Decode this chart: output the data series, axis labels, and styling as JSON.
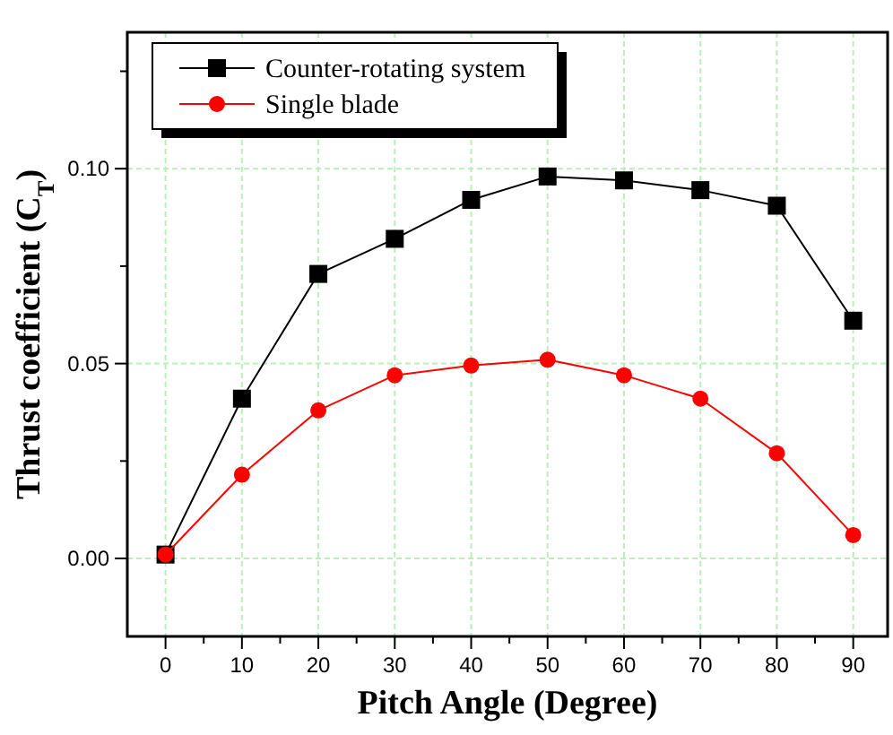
{
  "chart_data": {
    "type": "line",
    "xlabel": "Pitch Angle (Degree)",
    "ylabel": "Thrust coefficient (C$_{T}$)",
    "x": [
      0,
      10,
      20,
      30,
      40,
      50,
      60,
      70,
      80,
      90
    ],
    "series": [
      {
        "name": "Counter-rotating system",
        "color": "#000000",
        "marker": "square",
        "values": [
          0.001,
          0.041,
          0.073,
          0.082,
          0.092,
          0.098,
          0.097,
          0.0945,
          0.0905,
          0.061
        ]
      },
      {
        "name": "Single blade",
        "color": "#ff0000",
        "marker": "circle",
        "values": [
          0.001,
          0.0215,
          0.038,
          0.047,
          0.0495,
          0.051,
          0.047,
          0.041,
          0.027,
          0.006
        ]
      }
    ],
    "xlim": [
      -5,
      94.5
    ],
    "ylim": [
      -0.02,
      0.135
    ],
    "xticks": [
      0,
      {
        "value": 5,
        "label": null
      },
      10,
      {
        "value": 15,
        "label": null
      },
      20,
      {
        "value": 25,
        "label": null
      },
      30,
      {
        "value": 35,
        "label": null
      },
      40,
      {
        "value": 45,
        "label": null
      },
      50,
      {
        "value": 55,
        "label": null
      },
      60,
      {
        "value": 65,
        "label": null
      },
      70,
      {
        "value": 75,
        "label": null
      },
      80,
      {
        "value": 85,
        "label": null
      },
      90
    ],
    "yticks": [
      {
        "value": 0,
        "label": "0.00"
      },
      {
        "value": 0.025,
        "label": null
      },
      {
        "value": 0.05,
        "label": "0.05"
      },
      {
        "value": 0.075,
        "label": null
      },
      {
        "value": 0.1,
        "label": "0.10"
      },
      {
        "value": 0.125,
        "label": null
      }
    ],
    "grid": true,
    "legend": "top left"
  }
}
